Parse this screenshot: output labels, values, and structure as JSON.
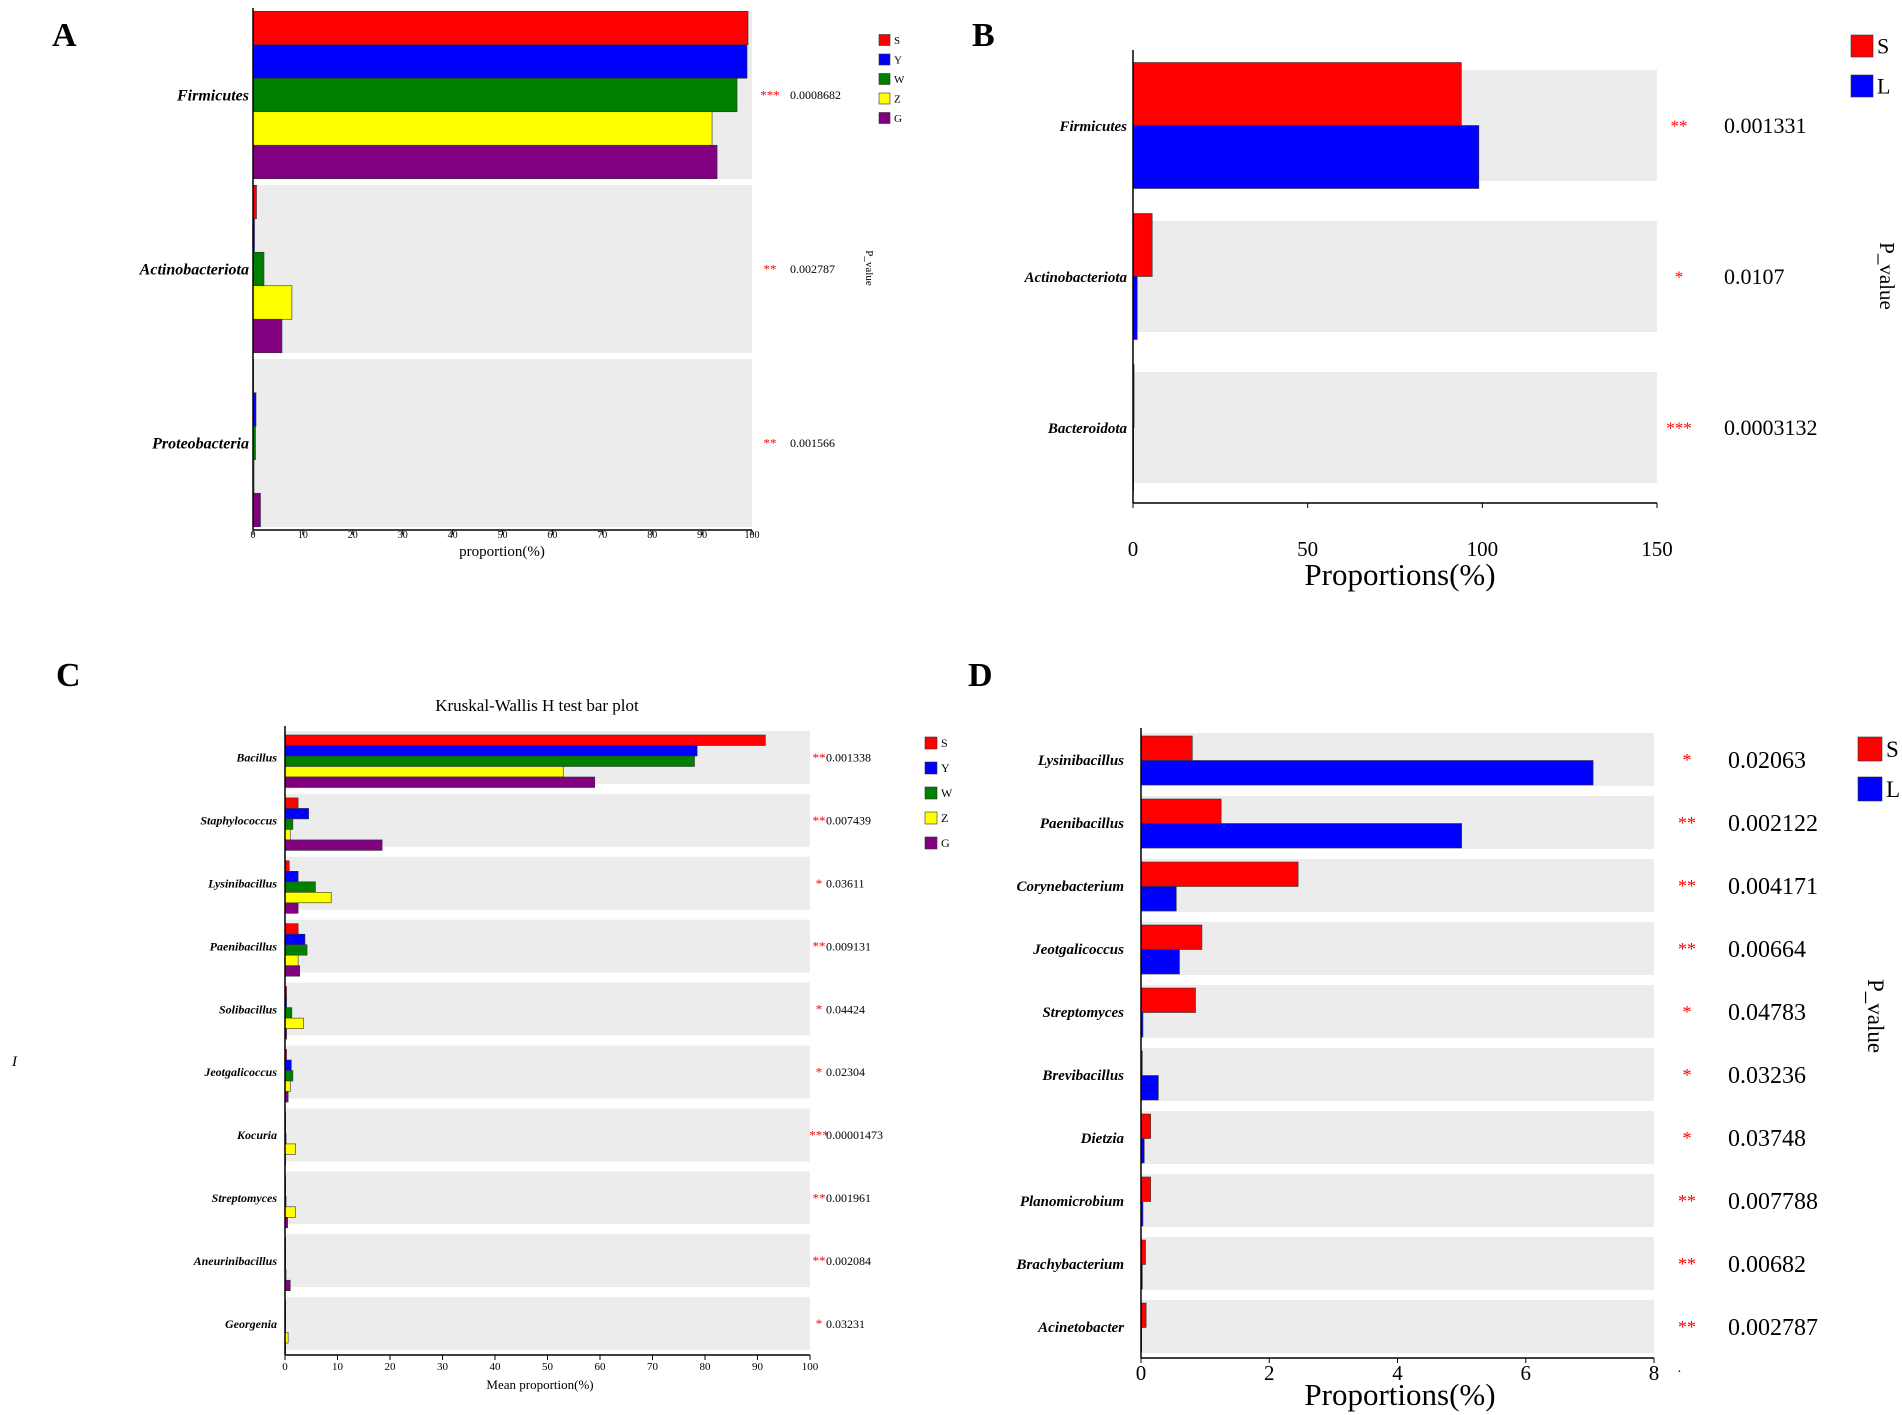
{
  "colors": {
    "S": "#ff0000",
    "Y": "#0000ff",
    "W": "#008000",
    "Z": "#ffff00",
    "G": "#800080",
    "L": "#0000ff",
    "panel_bg": "#ececec",
    "stars": "#ff0000"
  },
  "chart_data": [
    {
      "panel": "A",
      "type": "bar",
      "orientation": "horizontal",
      "title": "",
      "xlabel": "proportion(%)",
      "ylabel": "",
      "xlim": [
        0,
        100
      ],
      "xticks": [
        0,
        10,
        20,
        30,
        40,
        50,
        60,
        70,
        80,
        90,
        100
      ],
      "p_value_label": "P_value",
      "categories": [
        "Firmicutes",
        "Actinobacteriota",
        "Proteobacteria"
      ],
      "series": [
        {
          "name": "S",
          "values": [
            99.2,
            0.7,
            0.1
          ]
        },
        {
          "name": "Y",
          "values": [
            99.0,
            0.3,
            0.6
          ]
        },
        {
          "name": "W",
          "values": [
            97.0,
            2.2,
            0.5
          ]
        },
        {
          "name": "Z",
          "values": [
            92.0,
            7.8,
            0.2
          ]
        },
        {
          "name": "G",
          "values": [
            93.0,
            5.8,
            1.5
          ]
        }
      ],
      "stars": [
        "***",
        "**",
        "**"
      ],
      "p_values": [
        "0.0008682",
        "0.002787",
        "0.001566"
      ],
      "legend": [
        "S",
        "Y",
        "W",
        "Z",
        "G"
      ]
    },
    {
      "panel": "B",
      "type": "bar",
      "orientation": "horizontal",
      "title": "",
      "xlabel": "Proportions(%)",
      "ylabel": "",
      "xlim": [
        0,
        150
      ],
      "xticks": [
        0,
        50,
        100,
        150
      ],
      "p_value_label": "P_value",
      "categories": [
        "Firmicutes",
        "Actinobacteriota",
        "Bacteroidota"
      ],
      "series": [
        {
          "name": "S",
          "values": [
            94,
            5.5,
            0.3
          ]
        },
        {
          "name": "L",
          "values": [
            99,
            1.2,
            0.05
          ]
        }
      ],
      "stars": [
        "**",
        "*",
        "***"
      ],
      "p_values": [
        "0.001331",
        "0.0107",
        "0.0003132"
      ],
      "legend": [
        "S",
        "L"
      ]
    },
    {
      "panel": "C",
      "type": "bar",
      "orientation": "horizontal",
      "title": "Kruskal-Wallis H test bar plot",
      "xlabel": "Mean proportion(%)",
      "ylabel": "",
      "xlim": [
        0,
        100
      ],
      "xticks": [
        0,
        10,
        20,
        30,
        40,
        50,
        60,
        70,
        80,
        90,
        100
      ],
      "categories": [
        "Bacillus",
        "Staphylococcus",
        "Lysinibacillus",
        "Paenibacillus",
        "Solibacillus",
        "Jeotgalicoccus",
        "Kocuria",
        "Streptomyces",
        "Aneurinibacillus",
        "Georgenia"
      ],
      "series": [
        {
          "name": "S",
          "values": [
            91.5,
            2.5,
            0.8,
            2.5,
            0.3,
            0.3,
            0.1,
            0.1,
            0.1,
            0.05
          ]
        },
        {
          "name": "Y",
          "values": [
            78.5,
            4.5,
            2.5,
            3.8,
            0.3,
            1.2,
            0.1,
            0.1,
            0.1,
            0.05
          ]
        },
        {
          "name": "W",
          "values": [
            78.0,
            1.5,
            5.8,
            4.2,
            1.3,
            1.5,
            0.2,
            0.2,
            0.1,
            0.05
          ]
        },
        {
          "name": "Z",
          "values": [
            53.0,
            1.0,
            8.8,
            2.5,
            3.5,
            1.0,
            2.0,
            2.0,
            0.2,
            0.6
          ]
        },
        {
          "name": "G",
          "values": [
            59.0,
            18.5,
            2.5,
            2.8,
            0.3,
            0.6,
            0.1,
            0.5,
            1.0,
            0.1
          ]
        }
      ],
      "stars": [
        "**",
        "**",
        "*",
        "**",
        "*",
        "*",
        "***",
        "**",
        "**",
        "*"
      ],
      "p_values": [
        "0.001338",
        "0.007439",
        "0.03611",
        "0.009131",
        "0.04424",
        "0.02304",
        "0.00001473",
        "0.001961",
        "0.002084",
        "0.03231"
      ],
      "legend": [
        "S",
        "Y",
        "W",
        "Z",
        "G"
      ],
      "side_mark": "I"
    },
    {
      "panel": "D",
      "type": "bar",
      "orientation": "horizontal",
      "title": "",
      "xlabel": "Proportions(%)",
      "ylabel": "",
      "xlim": [
        0,
        8
      ],
      "xticks": [
        0,
        2,
        4,
        6,
        8
      ],
      "p_value_label": "P_value",
      "categories": [
        "Lysinibacillus",
        "Paenibacillus",
        "Corynebacterium",
        "Jeotgalicoccus",
        "Streptomyces",
        "Brevibacillus",
        "Dietzia",
        "Planomicrobium",
        "Brachybacterium",
        "Acinetobacter"
      ],
      "series": [
        {
          "name": "S",
          "values": [
            0.8,
            1.25,
            2.45,
            0.95,
            0.85,
            0.02,
            0.15,
            0.15,
            0.07,
            0.08
          ]
        },
        {
          "name": "L",
          "values": [
            7.05,
            5.0,
            0.55,
            0.6,
            0.03,
            0.27,
            0.05,
            0.03,
            0.02,
            0.01
          ]
        }
      ],
      "stars": [
        "*",
        "**",
        "**",
        "**",
        "*",
        "*",
        "*",
        "**",
        "**",
        "**"
      ],
      "p_values": [
        "0.02063",
        "0.002122",
        "0.004171",
        "0.00664",
        "0.04783",
        "0.03236",
        "0.03748",
        "0.007788",
        "0.00682",
        "0.002787"
      ],
      "legend": [
        "S",
        "L"
      ],
      "side_mark": "."
    }
  ]
}
